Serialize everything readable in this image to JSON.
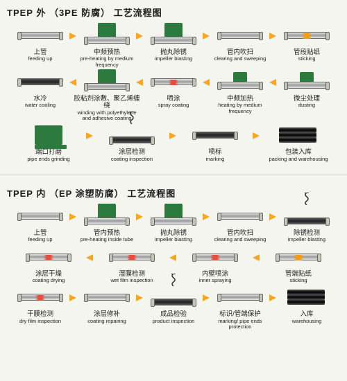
{
  "flowchart1": {
    "title": "TPEP 外 （3PE 防腐） 工艺流程图",
    "rows": [
      {
        "dir": "right",
        "steps": [
          {
            "cn": "上管",
            "en": "feeding up",
            "icon": "pipe"
          },
          {
            "cn": "中频预热",
            "en": "pre-heating by medium frequency",
            "icon": "pipe-machine"
          },
          {
            "cn": "抛丸除锈",
            "en": "impeller blasting",
            "icon": "pipe-machine"
          },
          {
            "cn": "管内吹扫",
            "en": "clearing and sweeping",
            "icon": "pipe"
          },
          {
            "cn": "管段贴纸",
            "en": "sticking",
            "icon": "pipe-heat-o"
          }
        ]
      },
      {
        "dir": "left",
        "steps": [
          {
            "cn": "水冷",
            "en": "water cooling",
            "icon": "pipe-dark"
          },
          {
            "cn": "胶粘剂涂敷、聚乙烯缠绕",
            "en": "winding with polyethylene and adhesive coating",
            "icon": "pipe-machine"
          },
          {
            "cn": "喷涂",
            "en": "spray coating",
            "icon": "pipe-heat-r"
          },
          {
            "cn": "中频加热",
            "en": "heating by medium frequency",
            "icon": "pipe-small-machine"
          },
          {
            "cn": "微尘处理",
            "en": "dusting",
            "icon": "pipe-small-machine"
          }
        ]
      },
      {
        "dir": "right",
        "steps": [
          {
            "cn": "端口打磨",
            "en": "pipe ends grinding",
            "icon": "stand"
          },
          {
            "cn": "涂层检测",
            "en": "coating inspection",
            "icon": "pipe-spring"
          },
          {
            "cn": "喷标",
            "en": "marking",
            "icon": "pipe-dark"
          },
          {
            "cn": "包装入库",
            "en": "packing and warehousing",
            "icon": "stack"
          }
        ]
      }
    ]
  },
  "flowchart2": {
    "title": "TPEP 内 （EP 涂塑防腐） 工艺流程图",
    "rows": [
      {
        "dir": "right",
        "steps": [
          {
            "cn": "上管",
            "en": "feeding up",
            "icon": "pipe"
          },
          {
            "cn": "管内预热",
            "en": "pre-heating inside tube",
            "icon": "pipe-machine"
          },
          {
            "cn": "抛丸除锈",
            "en": "impeller blasting",
            "icon": "pipe-machine"
          },
          {
            "cn": "管内吹扫",
            "en": "clearing and sweeping",
            "icon": "pipe"
          },
          {
            "cn": "除锈检测",
            "en": "impeller blasting",
            "icon": "pipe-spring"
          }
        ]
      },
      {
        "dir": "left",
        "steps": [
          {
            "cn": "涂层干燥",
            "en": "coating drying",
            "icon": "pipe-heat-r"
          },
          {
            "cn": "湿膜检测",
            "en": "wet film inspection",
            "icon": "pipe-heat-r"
          },
          {
            "cn": "内壁喷涂",
            "en": "inner spraying",
            "icon": "pipe-heat-r"
          },
          {
            "cn": "管端贴纸",
            "en": "sticking",
            "icon": "pipe-heat-o"
          }
        ]
      },
      {
        "dir": "right",
        "steps": [
          {
            "cn": "干膜检测",
            "en": "dry film inspection",
            "icon": "pipe-heat-r"
          },
          {
            "cn": "涂层修补",
            "en": "coating repairing",
            "icon": "pipe"
          },
          {
            "cn": "成品检验",
            "en": "product inspection",
            "icon": "pipe-spring"
          },
          {
            "cn": "标识/管端保护",
            "en": "marking/ pipe ends protection",
            "icon": "pipe"
          },
          {
            "cn": "入库",
            "en": "warehousing",
            "icon": "stack"
          }
        ]
      }
    ]
  },
  "colors": {
    "arrow": "#f5a623",
    "green": "#2d7a3e",
    "red": "#e74c3c",
    "orange": "#f39c12",
    "bg": "#f5f5f0"
  }
}
